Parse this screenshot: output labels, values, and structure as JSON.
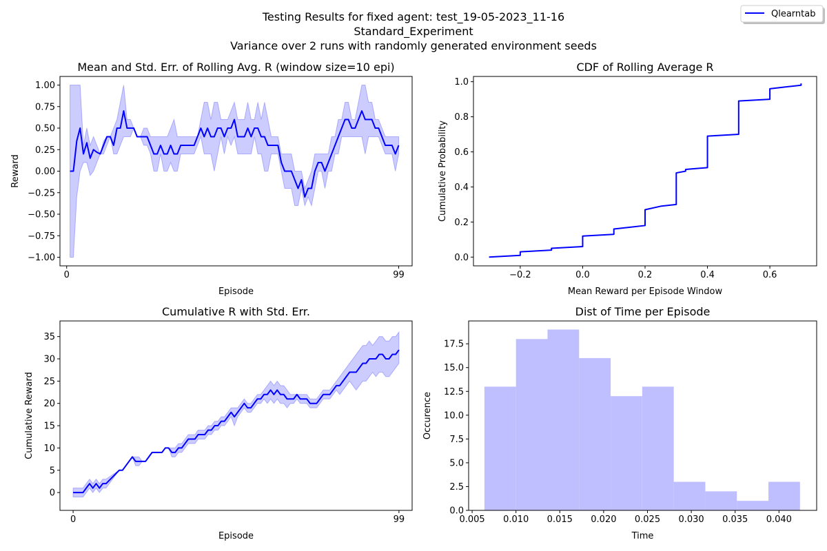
{
  "suptitle": [
    "Testing Results for fixed agent: test_19-05-2023_11-16",
    "Standard_Experiment",
    "Variance over 2 runs with randomly generated environment seeds"
  ],
  "legend": {
    "label": "Qlearntab",
    "color": "#0000ff",
    "placement": "top-right"
  },
  "colors": {
    "line": "#0000ff",
    "band": "#0000ff",
    "band_opacity": 0.2,
    "hist": "#bfbfff"
  },
  "chart_data": [
    {
      "type": "line",
      "title": "Mean and Std. Err. of Rolling Avg. R (window size=10 epi)",
      "xlabel": "Episode",
      "ylabel": "Reward",
      "xlim": [
        -2,
        103
      ],
      "ylim": [
        -1.1,
        1.1
      ],
      "xticks": [
        0,
        99
      ],
      "yticks": [
        -1.0,
        -0.75,
        -0.5,
        -0.25,
        0.0,
        0.25,
        0.5,
        0.75,
        1.0
      ],
      "ytick_labels": [
        "−1.00",
        "−0.75",
        "−0.50",
        "−0.25",
        "0.00",
        "0.25",
        "0.50",
        "0.75",
        "1.00"
      ],
      "x": [
        1,
        2,
        3,
        4,
        5,
        6,
        7,
        8,
        9,
        10,
        11,
        12,
        13,
        14,
        15,
        16,
        17,
        18,
        19,
        20,
        21,
        22,
        23,
        24,
        25,
        26,
        27,
        28,
        29,
        30,
        31,
        32,
        33,
        34,
        35,
        36,
        37,
        38,
        39,
        40,
        41,
        42,
        43,
        44,
        45,
        46,
        47,
        48,
        49,
        50,
        51,
        52,
        53,
        54,
        55,
        56,
        57,
        58,
        59,
        60,
        61,
        62,
        63,
        64,
        65,
        66,
        67,
        68,
        69,
        70,
        71,
        72,
        73,
        74,
        75,
        76,
        77,
        78,
        79,
        80,
        81,
        82,
        83,
        84,
        85,
        86,
        87,
        88,
        89,
        90,
        91,
        92,
        93,
        94,
        95,
        96,
        97,
        98,
        99
      ],
      "mean": [
        0,
        0,
        0.35,
        0.5,
        0.2,
        0.33,
        0.15,
        0.25,
        0.22,
        0.2,
        0.3,
        0.4,
        0.4,
        0.3,
        0.5,
        0.5,
        0.7,
        0.5,
        0.5,
        0.5,
        0.4,
        0.4,
        0.4,
        0.4,
        0.3,
        0.2,
        0.2,
        0.3,
        0.2,
        0.2,
        0.3,
        0.2,
        0.2,
        0.3,
        0.3,
        0.3,
        0.3,
        0.3,
        0.4,
        0.5,
        0.4,
        0.5,
        0.4,
        0.4,
        0.5,
        0.5,
        0.4,
        0.5,
        0.5,
        0.6,
        0.4,
        0.4,
        0.4,
        0.5,
        0.4,
        0.5,
        0.5,
        0.4,
        0.4,
        0.3,
        0.3,
        0.3,
        0.3,
        0.1,
        0,
        0,
        0,
        -0.1,
        -0.2,
        -0.1,
        -0.3,
        -0.2,
        -0.2,
        0,
        0.1,
        0.1,
        0,
        0.1,
        0.2,
        0.3,
        0.4,
        0.5,
        0.6,
        0.6,
        0.5,
        0.5,
        0.6,
        0.7,
        0.6,
        0.6,
        0.6,
        0.5,
        0.5,
        0.4,
        0.3,
        0.3,
        0.3,
        0.2,
        0.3
      ],
      "upper": [
        1,
        1,
        1,
        1,
        0.3,
        0.5,
        0.3,
        0.4,
        0.3,
        0.2,
        0.35,
        0.4,
        0.4,
        0.5,
        0.6,
        0.8,
        1.0,
        0.6,
        0.6,
        0.5,
        0.4,
        0.4,
        0.5,
        0.5,
        0.4,
        0.4,
        0.4,
        0.4,
        0.4,
        0.4,
        0.5,
        0.6,
        0.4,
        0.4,
        0.4,
        0.4,
        0.4,
        0.4,
        0.4,
        0.6,
        0.8,
        0.8,
        0.6,
        0.8,
        0.8,
        0.6,
        0.6,
        0.6,
        0.7,
        0.8,
        0.6,
        0.6,
        0.6,
        0.8,
        0.6,
        0.6,
        0.8,
        0.6,
        0.8,
        0.6,
        0.4,
        0.4,
        0.4,
        0.2,
        0.2,
        0.2,
        0.2,
        0,
        0,
        0,
        -0.2,
        -0.1,
        0,
        0.2,
        0.2,
        0.2,
        0.2,
        0.2,
        0.4,
        0.4,
        0.6,
        0.6,
        0.8,
        0.8,
        0.6,
        0.6,
        0.8,
        1.0,
        1.0,
        0.8,
        0.8,
        0.6,
        0.6,
        0.5,
        0.4,
        0.4,
        0.4,
        0.4,
        0.4
      ],
      "lower": [
        -1,
        -1,
        -0.3,
        0,
        0.1,
        0.1,
        -0.05,
        0,
        0.1,
        0.2,
        0.2,
        0.3,
        0.4,
        0.2,
        0.2,
        0.3,
        0.4,
        0.4,
        0.4,
        0.5,
        0.4,
        0.4,
        0.3,
        0.3,
        0.2,
        0,
        0,
        0.2,
        0,
        0,
        0.1,
        0,
        0,
        0.2,
        0.2,
        0.2,
        0.2,
        0.2,
        0.3,
        0.4,
        0.2,
        0.2,
        0.2,
        0,
        0.2,
        0.4,
        0.2,
        0.4,
        0.3,
        0.4,
        0.2,
        0.2,
        0.2,
        0.2,
        0.2,
        0.4,
        0.2,
        0.2,
        0,
        0,
        0.2,
        0.2,
        0.2,
        0,
        -0.2,
        -0.2,
        -0.2,
        -0.4,
        -0.4,
        -0.2,
        -0.4,
        -0.3,
        -0.4,
        -0.2,
        0,
        0,
        -0.2,
        0,
        0,
        0.2,
        0.2,
        0.4,
        0.4,
        0.4,
        0.4,
        0.4,
        0.4,
        0.4,
        0.2,
        0.4,
        0.4,
        0.4,
        0.4,
        0.3,
        0.2,
        0.2,
        0.2,
        0,
        0.2
      ]
    },
    {
      "type": "line",
      "title": "CDF of Rolling Average R",
      "xlabel": "Mean Reward per Episode Window",
      "ylabel": "Cumulative Probability",
      "xlim": [
        -0.35,
        0.75
      ],
      "ylim": [
        -0.05,
        1.03
      ],
      "xticks": [
        -0.2,
        0.0,
        0.2,
        0.4,
        0.6
      ],
      "xtick_labels": [
        "−0.2",
        "0.0",
        "0.2",
        "0.4",
        "0.6"
      ],
      "yticks": [
        0.0,
        0.2,
        0.4,
        0.6,
        0.8,
        1.0
      ],
      "ytick_labels": [
        "0.0",
        "0.2",
        "0.4",
        "0.6",
        "0.8",
        "1.0"
      ],
      "x": [
        -0.3,
        -0.2,
        -0.2,
        -0.1,
        -0.1,
        0,
        0,
        0.1,
        0.1,
        0.15,
        0.2,
        0.2,
        0.25,
        0.3,
        0.3,
        0.33,
        0.33,
        0.4,
        0.4,
        0.5,
        0.5,
        0.6,
        0.6,
        0.7,
        0.7
      ],
      "y": [
        0,
        0.01,
        0.03,
        0.04,
        0.05,
        0.06,
        0.12,
        0.13,
        0.16,
        0.17,
        0.18,
        0.27,
        0.29,
        0.3,
        0.48,
        0.49,
        0.5,
        0.51,
        0.69,
        0.7,
        0.89,
        0.9,
        0.96,
        0.98,
        0.99
      ]
    },
    {
      "type": "line",
      "title": "Cumulative R with Std. Err.",
      "xlabel": "Episode",
      "ylabel": "Cumulative Reward",
      "xlim": [
        -4,
        103
      ],
      "ylim": [
        -4,
        38.5
      ],
      "xticks": [
        0,
        99
      ],
      "yticks": [
        0,
        5,
        10,
        15,
        20,
        25,
        30,
        35
      ],
      "ytick_labels": [
        "0",
        "5",
        "10",
        "15",
        "20",
        "25",
        "30",
        "35"
      ],
      "x": [
        0,
        3,
        5,
        6,
        7,
        8,
        9,
        10,
        14,
        15,
        16,
        17,
        18,
        19,
        20,
        21,
        22,
        23,
        24,
        25,
        26,
        27,
        28,
        29,
        30,
        31,
        32,
        33,
        34,
        35,
        36,
        37,
        38,
        39,
        40,
        41,
        42,
        43,
        44,
        45,
        46,
        47,
        48,
        49,
        50,
        51,
        52,
        53,
        54,
        55,
        56,
        57,
        58,
        59,
        60,
        61,
        62,
        63,
        64,
        65,
        66,
        67,
        68,
        69,
        70,
        71,
        72,
        73,
        74,
        75,
        76,
        77,
        78,
        79,
        80,
        81,
        82,
        83,
        84,
        85,
        86,
        87,
        88,
        89,
        90,
        91,
        92,
        93,
        94,
        95,
        96,
        97,
        98,
        99
      ],
      "mean": [
        0,
        0,
        2,
        1,
        2,
        1,
        2,
        2,
        5,
        5,
        6,
        7,
        8,
        7,
        7,
        7,
        7,
        8,
        9,
        9,
        9,
        9,
        10,
        10,
        9,
        9,
        10,
        10,
        11,
        12,
        12,
        12,
        13,
        13,
        13,
        14,
        14,
        15,
        15,
        16,
        16,
        17,
        18,
        17,
        18,
        19,
        20,
        19,
        19,
        20,
        21,
        21,
        22,
        22,
        23,
        22,
        23,
        22,
        22,
        21,
        21,
        21,
        22,
        21,
        21,
        21,
        20,
        20,
        20,
        21,
        22,
        22,
        22,
        23,
        24,
        24,
        25,
        26,
        27,
        27,
        27,
        28,
        29,
        29,
        30,
        30,
        30,
        31,
        31,
        30,
        30,
        31,
        31,
        32
      ],
      "upper": [
        1,
        1,
        3,
        2,
        3,
        2,
        3,
        3,
        5,
        5,
        6,
        7,
        8,
        8,
        8,
        7,
        7,
        8,
        9,
        9,
        9,
        9,
        10,
        10,
        10,
        10,
        11,
        11,
        12,
        13,
        13,
        13,
        14,
        14,
        14,
        15,
        15,
        16,
        16,
        17,
        17,
        18,
        19,
        19,
        19,
        20,
        21,
        20,
        20,
        21,
        22,
        22,
        23,
        24,
        25,
        24,
        25,
        24,
        24,
        23,
        22,
        22,
        22,
        22,
        22,
        22,
        21,
        21,
        21,
        22,
        23,
        23,
        23,
        24,
        25,
        26,
        27,
        28,
        29,
        30,
        31,
        32,
        33,
        33,
        34,
        33,
        34,
        35,
        35,
        34,
        34,
        35,
        35,
        36
      ],
      "lower": [
        -1,
        -1,
        1,
        0,
        1,
        0,
        1,
        1,
        5,
        5,
        6,
        7,
        8,
        6,
        6,
        7,
        7,
        8,
        9,
        9,
        9,
        9,
        10,
        10,
        8,
        8,
        9,
        9,
        10,
        11,
        11,
        11,
        12,
        12,
        12,
        13,
        13,
        14,
        14,
        15,
        15,
        16,
        17,
        15,
        17,
        18,
        19,
        18,
        18,
        19,
        20,
        20,
        21,
        20,
        21,
        20,
        21,
        20,
        20,
        19,
        20,
        20,
        21,
        20,
        20,
        20,
        19,
        19,
        19,
        20,
        21,
        21,
        21,
        22,
        23,
        22,
        23,
        24,
        25,
        24,
        23,
        24,
        25,
        25,
        26,
        27,
        26,
        27,
        27,
        26,
        26,
        27,
        28,
        29
      ]
    },
    {
      "type": "bar",
      "title": "Dist of Time per Episode",
      "xlabel": "Time",
      "ylabel": "Occurence",
      "xlim": [
        0.0046,
        0.0443
      ],
      "ylim": [
        0,
        19.9
      ],
      "xticks": [
        0.005,
        0.01,
        0.015,
        0.02,
        0.025,
        0.03,
        0.035,
        0.04
      ],
      "xtick_labels": [
        "0.005",
        "0.010",
        "0.015",
        "0.020",
        "0.025",
        "0.030",
        "0.035",
        "0.040"
      ],
      "yticks": [
        0.0,
        2.5,
        5.0,
        7.5,
        10.0,
        12.5,
        15.0,
        17.5
      ],
      "ytick_labels": [
        "0.0",
        "2.5",
        "5.0",
        "7.5",
        "10.0",
        "12.5",
        "15.0",
        "17.5"
      ],
      "bin_edges": [
        0.0064,
        0.01,
        0.0136,
        0.0172,
        0.0208,
        0.0244,
        0.028,
        0.0316,
        0.0352,
        0.0388,
        0.0424
      ],
      "values": [
        13,
        18,
        19,
        16,
        12,
        13,
        3,
        2,
        1,
        3
      ]
    }
  ]
}
